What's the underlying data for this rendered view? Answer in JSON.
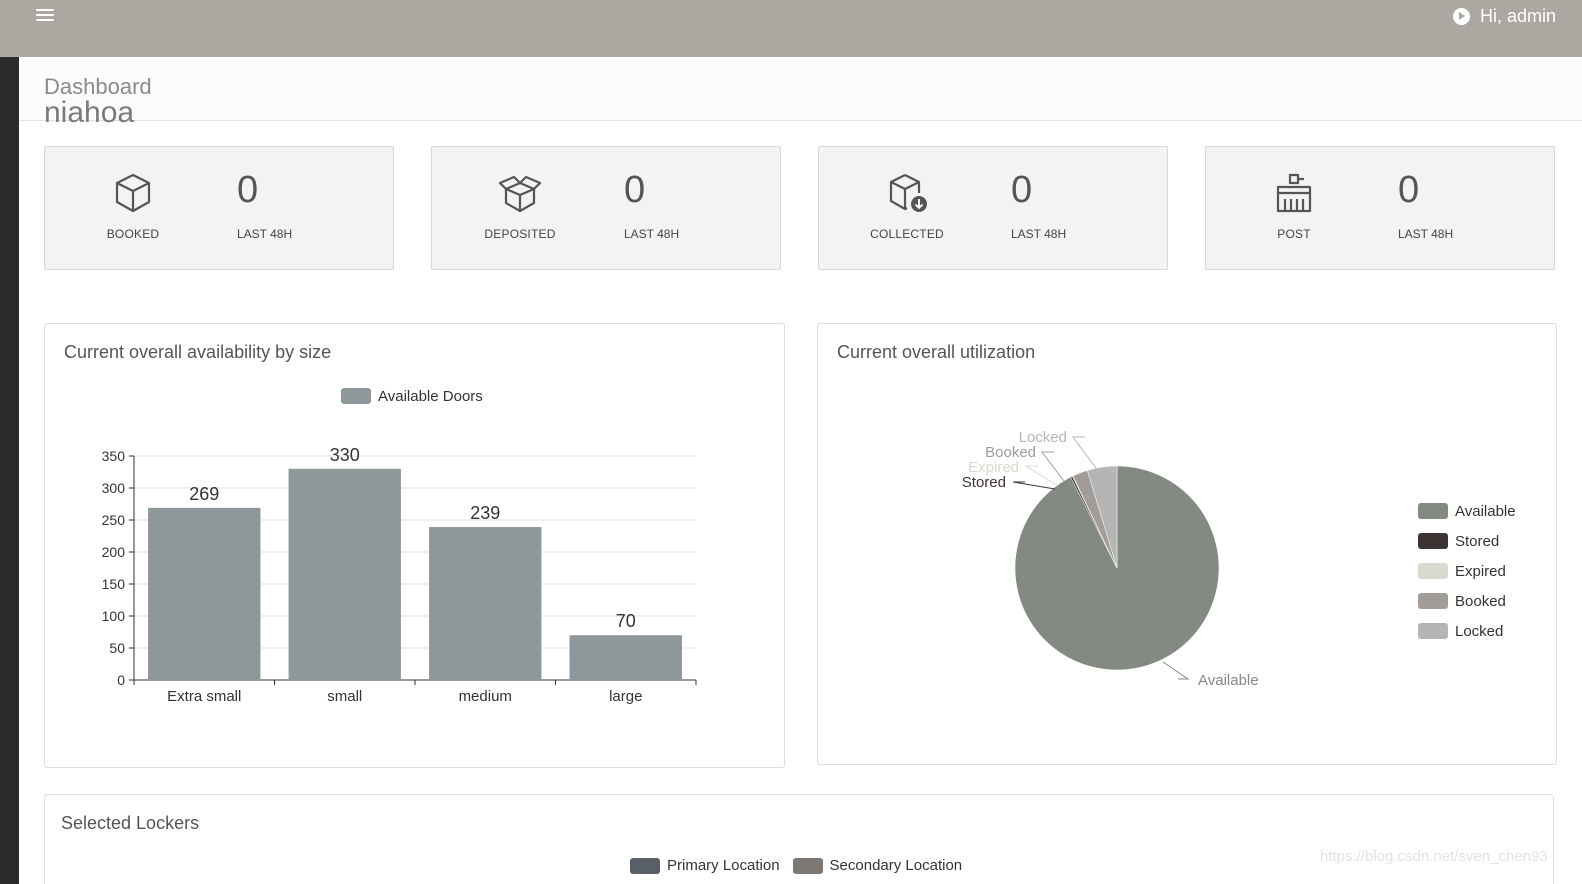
{
  "header": {
    "greeting": "Hi, admin"
  },
  "page": {
    "title": "Dashboard",
    "subtitle": "niahoa"
  },
  "stats": [
    {
      "label": "BOOKED",
      "count": "0",
      "sub": "LAST 48H",
      "icon": "box-icon"
    },
    {
      "label": "DEPOSITED",
      "count": "0",
      "sub": "LAST 48H",
      "icon": "open-box-icon"
    },
    {
      "label": "COLLECTED",
      "count": "0",
      "sub": "LAST 48H",
      "icon": "box-download-icon"
    },
    {
      "label": "POST",
      "count": "0",
      "sub": "LAST 48H",
      "icon": "locker-post-icon"
    }
  ],
  "availability": {
    "title": "Current overall availability by size"
  },
  "utilization": {
    "title": "Current overall utilization"
  },
  "lockers": {
    "title": "Selected Lockers",
    "legend": [
      {
        "name": "Primary Location",
        "color": "#595f66"
      },
      {
        "name": "Secondary Location",
        "color": "#7d7873"
      }
    ]
  },
  "watermark": "https://blog.csdn.net/sven_chen93",
  "chart_data": [
    {
      "type": "bar",
      "title": "Current overall availability by size",
      "categories": [
        "Extra small",
        "small",
        "medium",
        "large"
      ],
      "series": [
        {
          "name": "Available Doors",
          "values": [
            269,
            330,
            239,
            70
          ],
          "color": "#8e9799"
        }
      ],
      "ylim": [
        0,
        350
      ],
      "yticks": [
        0,
        50,
        100,
        150,
        200,
        250,
        300,
        350
      ],
      "grid": true,
      "legend": "top-center"
    },
    {
      "type": "pie",
      "title": "Current overall utilization",
      "series": [
        {
          "name": "Available",
          "value": 92.5,
          "color": "#838a82"
        },
        {
          "name": "Stored",
          "value": 0.3,
          "color": "#3d3333"
        },
        {
          "name": "Expired",
          "value": 0.1,
          "color": "#d9d9cf"
        },
        {
          "name": "Booked",
          "value": 2.4,
          "color": "#a19c98"
        },
        {
          "name": "Locked",
          "value": 4.7,
          "color": "#b5b5b5"
        }
      ],
      "legend": "right"
    }
  ]
}
